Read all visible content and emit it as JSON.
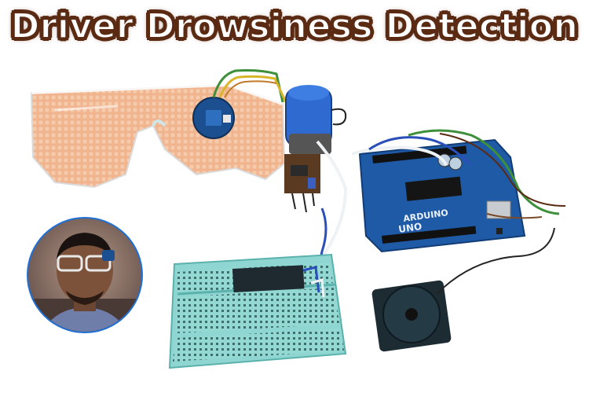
{
  "title": "Driver Drowsiness Detection",
  "board_label": "UNO",
  "board_brand": "ARDUINO",
  "colors": {
    "title_outline": "#5a2a12",
    "glasses": "#f2b48e",
    "arduino": "#1f5aa6",
    "breadboard": "#8fd6d2",
    "buzzer": "#1d2b33",
    "wire_blue": "#2b4fb8",
    "wire_white": "#eef2f5",
    "wire_green": "#3e8f3a",
    "wire_yellow": "#d9b52a"
  }
}
